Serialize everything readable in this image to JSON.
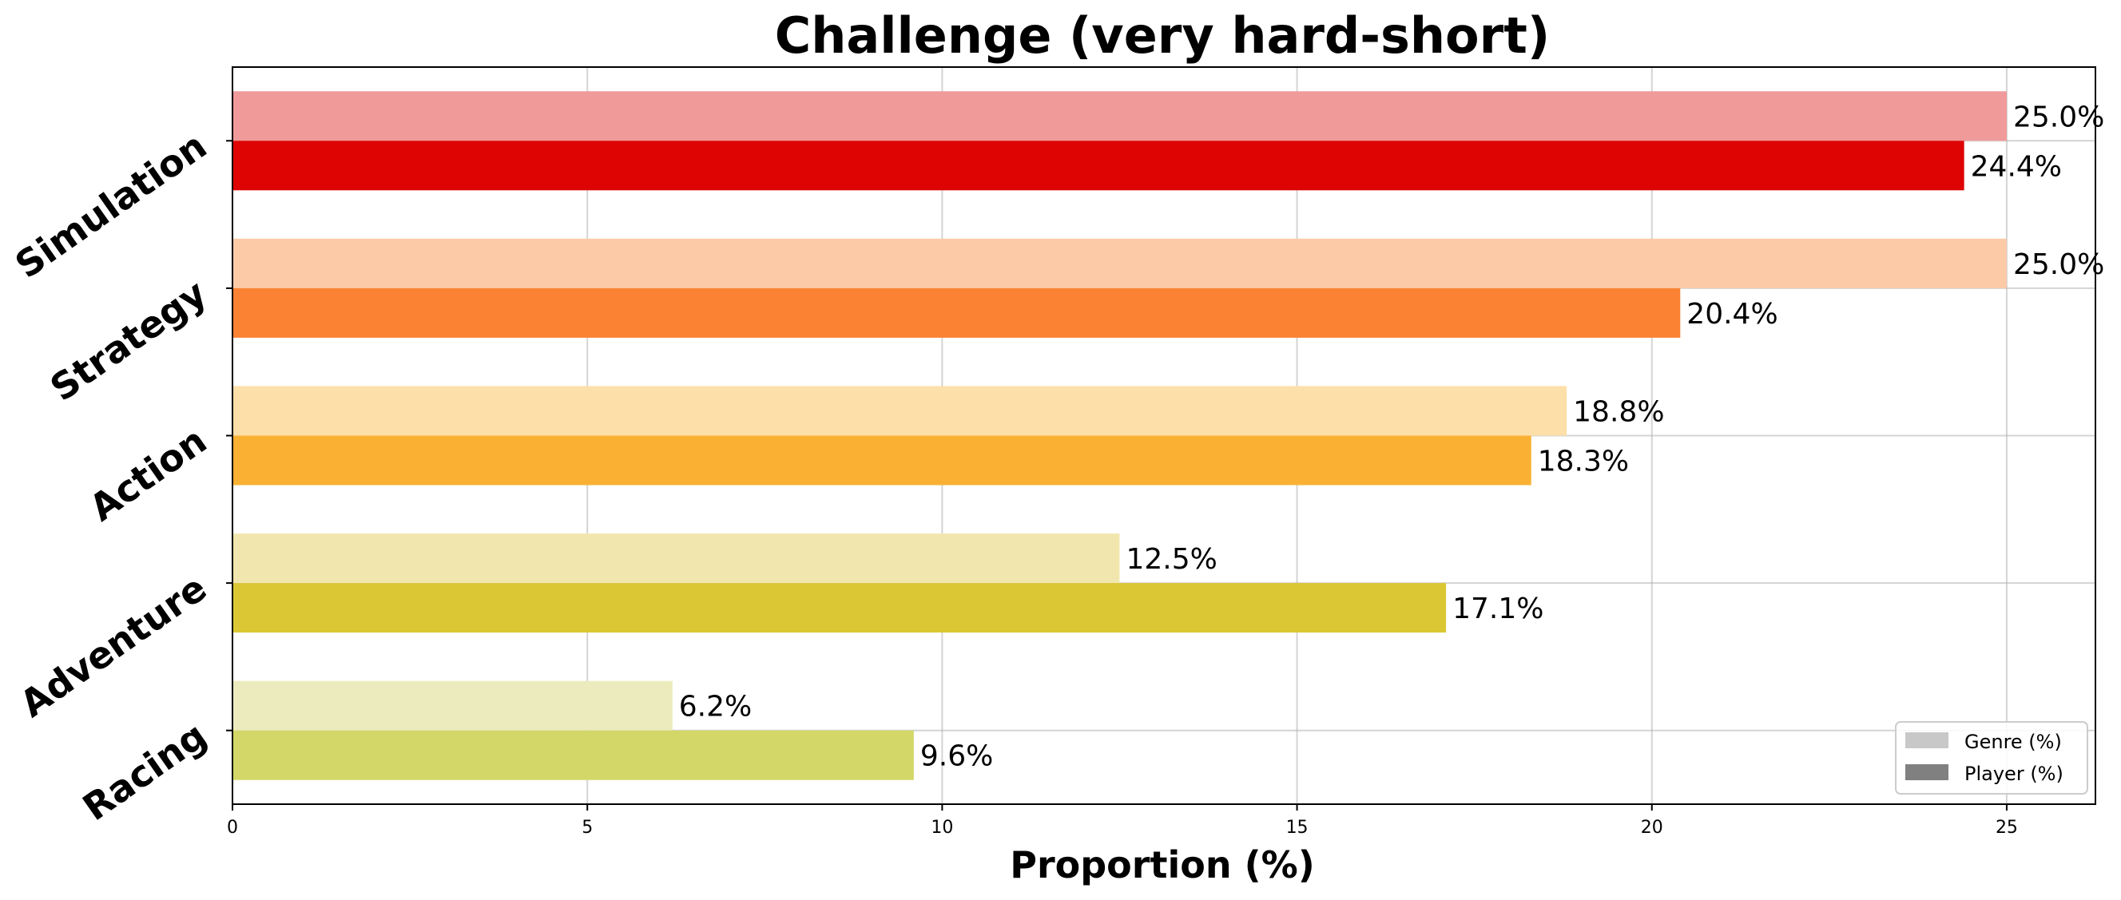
{
  "chart_data": {
    "type": "bar",
    "orientation": "horizontal",
    "title": "Challenge (very hard-short)",
    "xlabel": "Proportion (%)",
    "ylabel": "",
    "xlim": [
      0,
      26.25
    ],
    "xticks": [
      "0",
      "5",
      "10",
      "15",
      "20",
      "25"
    ],
    "grid": true,
    "legend_position": "lower-right",
    "categories": [
      "Simulation",
      "Strategy",
      "Action",
      "Adventure",
      "Racing"
    ],
    "series": [
      {
        "name": "Genre (%)",
        "values": [
          25.0,
          25.0,
          18.8,
          12.5,
          6.2
        ],
        "labels": [
          "25.0%",
          "25.0%",
          "18.8%",
          "12.5%",
          "6.2%"
        ],
        "colors": [
          "#f09a9a",
          "#fdcaa8",
          "#fddfa9",
          "#f1e7ae",
          "#ecebbd"
        ],
        "legend_color": "#c8c8c8"
      },
      {
        "name": "Player (%)",
        "values": [
          24.4,
          20.4,
          18.3,
          17.1,
          9.6
        ],
        "labels": [
          "24.4%",
          "20.4%",
          "18.3%",
          "17.1%",
          "9.6%"
        ],
        "colors": [
          "#de0404",
          "#fb8233",
          "#fab133",
          "#dbc734",
          "#d3d767"
        ],
        "legend_color": "#808080"
      }
    ]
  }
}
